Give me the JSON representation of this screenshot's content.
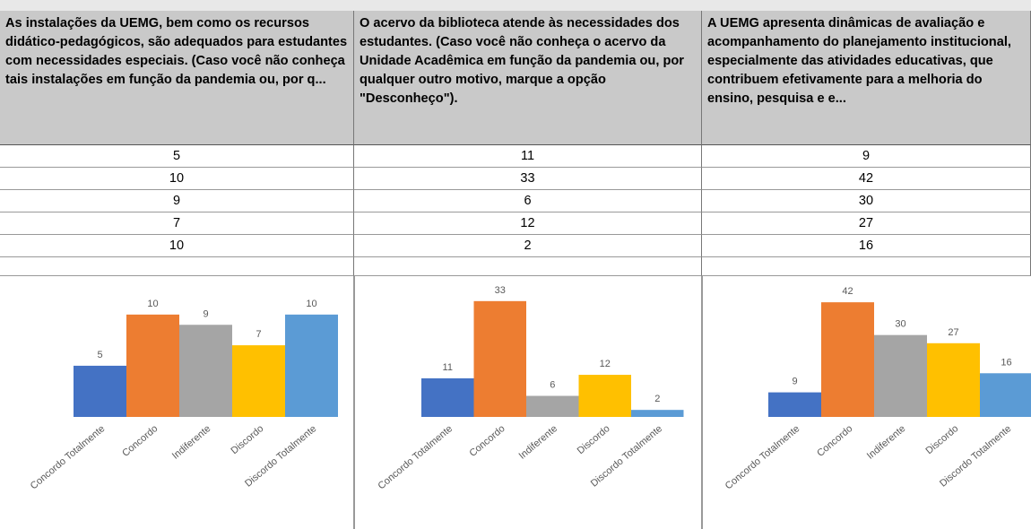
{
  "columns": [
    {
      "header": "As instalações da UEMG, bem como os recursos didático-pedagógicos, são adequados para estudantes com necessidades especiais. (Caso você não conheça tais instalações em função da pandemia ou, por q..."
    },
    {
      "header": "O acervo da biblioteca atende às necessidades dos estudantes. (Caso você não conheça o acervo da Unidade Acadêmica em função da pandemia ou, por qualquer outro motivo, marque a opção \"Desconheço\")."
    },
    {
      "header": "A UEMG apresenta dinâmicas de avaliação e acompanhamento do planejamento institucional, especialmente das atividades educativas, que contribuem efetivamente para a melhoria do ensino, pesquisa e e..."
    }
  ],
  "chart_data": [
    {
      "type": "bar",
      "categories": [
        "Concordo Totalmente",
        "Concordo",
        "Indiferente",
        "Discordo",
        "Discordo Totalmente"
      ],
      "values": [
        5,
        10,
        9,
        7,
        10
      ],
      "colors": [
        "#4472c4",
        "#ed7d31",
        "#a5a5a5",
        "#ffc000",
        "#5b9bd5"
      ],
      "ylim": [
        0,
        12
      ]
    },
    {
      "type": "bar",
      "categories": [
        "Concordo Totalmente",
        "Concordo",
        "Indiferente",
        "Discordo",
        "Discordo Totalmente"
      ],
      "values": [
        11,
        33,
        6,
        12,
        2
      ],
      "colors": [
        "#4472c4",
        "#ed7d31",
        "#a5a5a5",
        "#ffc000",
        "#5b9bd5"
      ],
      "ylim": [
        0,
        35
      ]
    },
    {
      "type": "bar",
      "categories": [
        "Concordo Totalmente",
        "Concordo",
        "Indiferente",
        "Discordo",
        "Discordo Totalmente"
      ],
      "values": [
        9,
        42,
        30,
        27,
        16
      ],
      "colors": [
        "#4472c4",
        "#ed7d31",
        "#a5a5a5",
        "#ffc000",
        "#5b9bd5"
      ],
      "ylim": [
        0,
        45
      ]
    }
  ]
}
